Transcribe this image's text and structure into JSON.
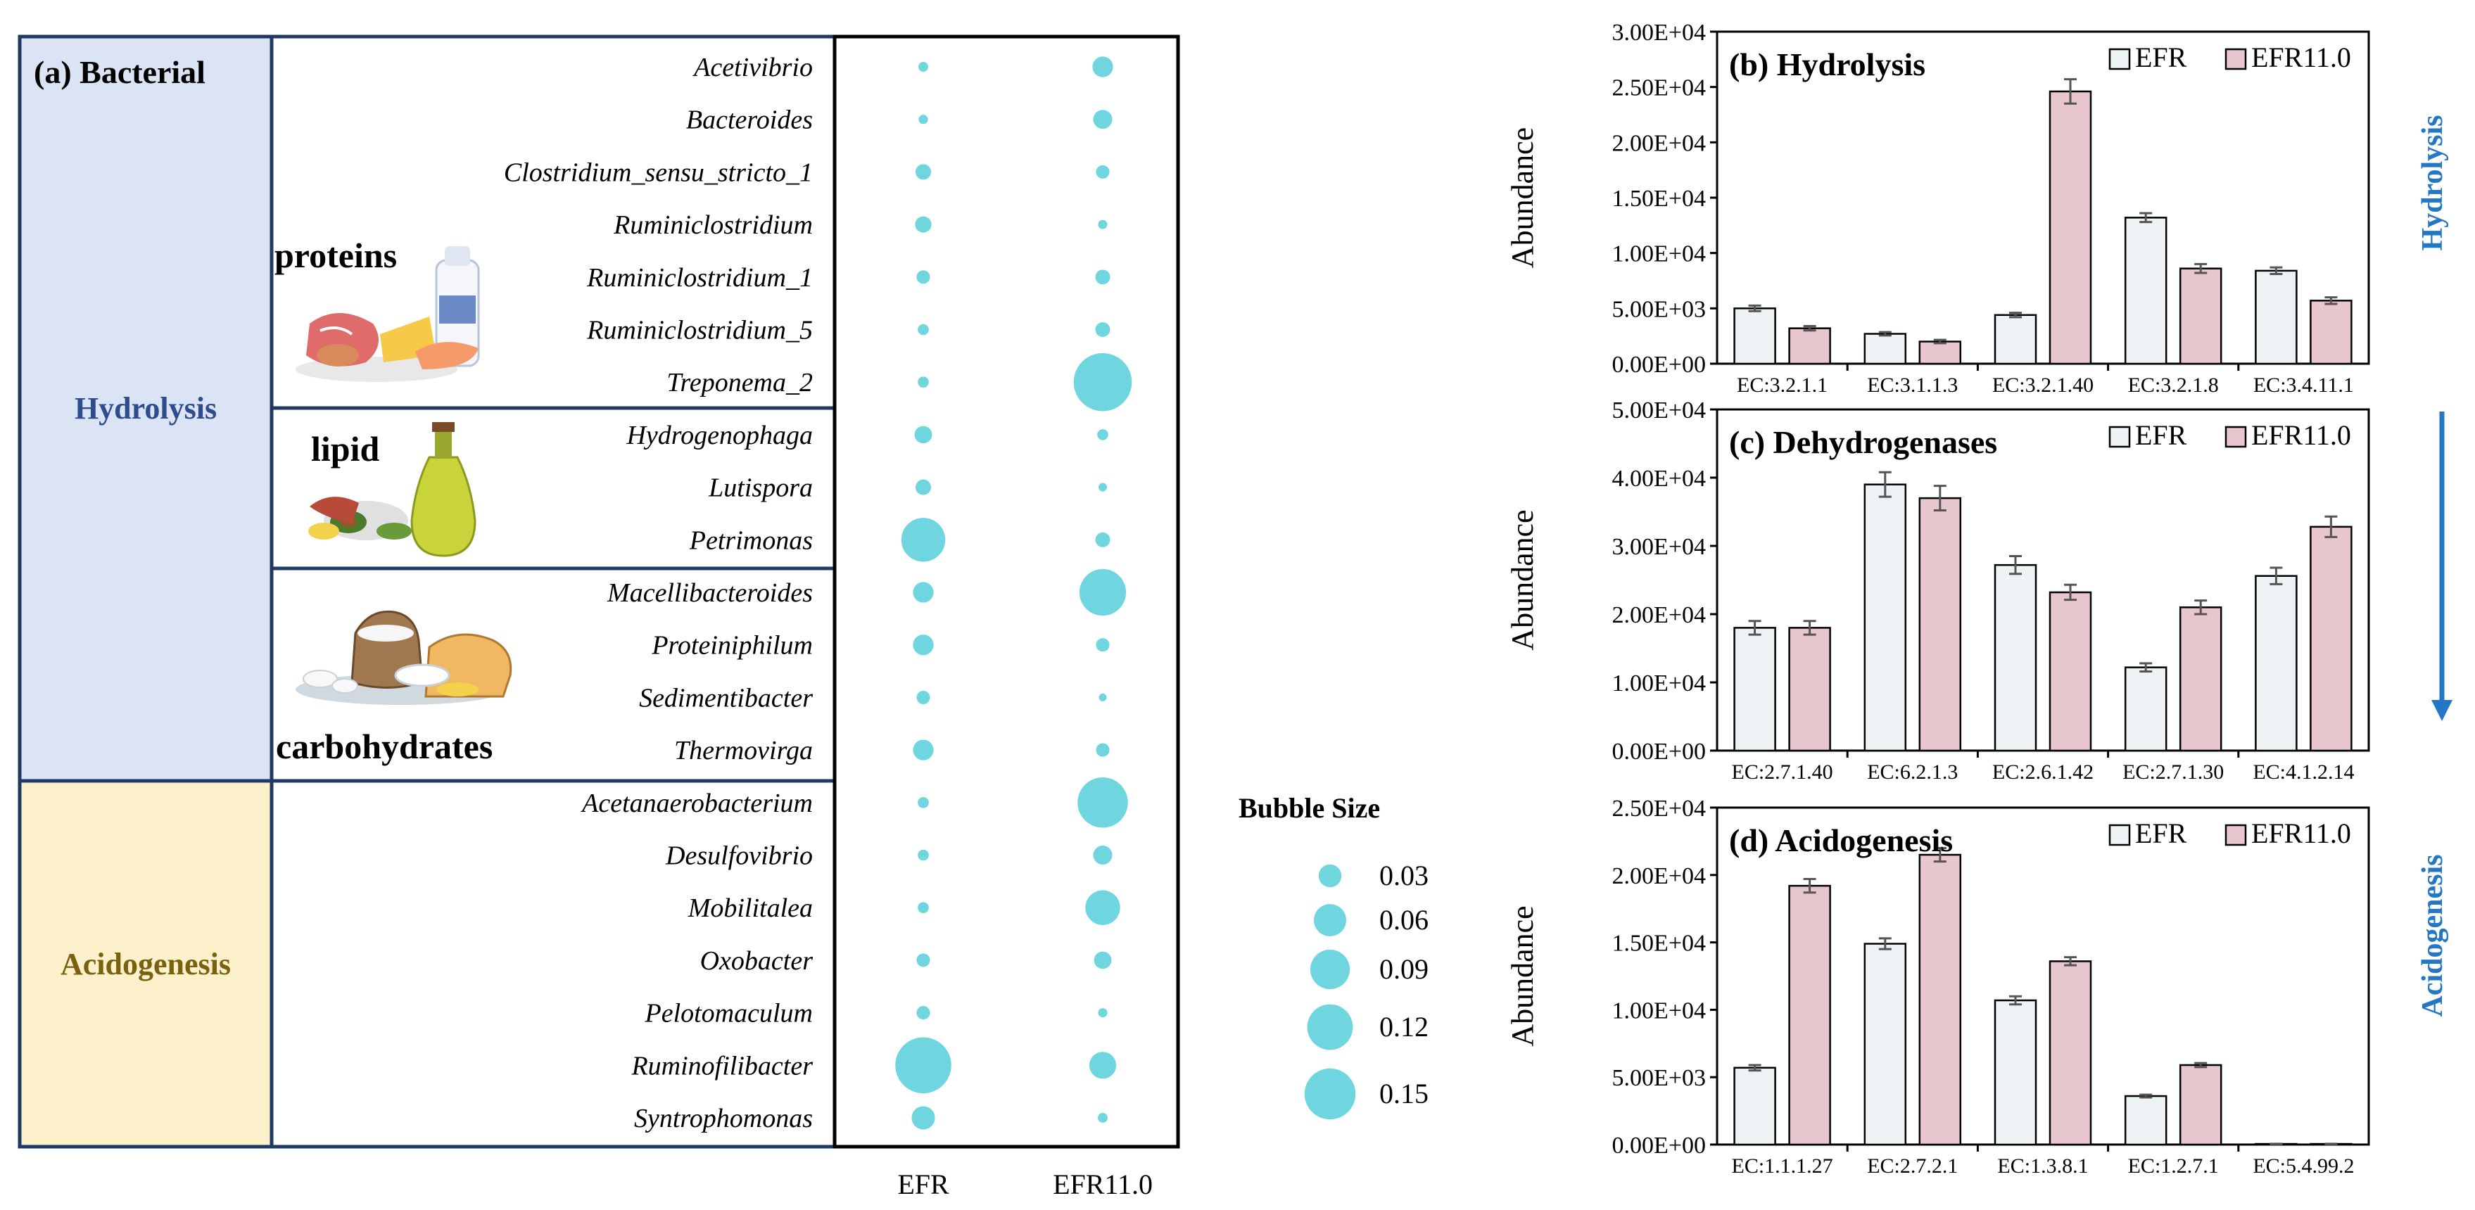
{
  "colors": {
    "bubble": "#6fd6df",
    "hydrolysis_bg": "#dbe4f4",
    "acidogenesis_bg": "#fdf1cc",
    "hydrolysis_text": "#2e4c8e",
    "acidogenesis_text": "#7a6110",
    "frame": "#1f3864",
    "efr_bar": "#edf3f5",
    "efr110_bar": "#e8c6cd",
    "arrow": "#2477c4"
  },
  "panel_a": {
    "title": "(a) Bacterial",
    "stage_hydrolysis": "Hydrolysis",
    "stage_acidogenesis": "Acidogenesis",
    "group_proteins": "proteins",
    "group_lipid": "lipid",
    "group_carbohydrates": "carbohydrates",
    "bubble_size_title": "Bubble Size",
    "legend_sizes": [
      "0.03",
      "0.06",
      "0.09",
      "0.12",
      "0.15"
    ],
    "legend_values": [
      0.03,
      0.06,
      0.09,
      0.12,
      0.15
    ],
    "icons": [
      "proteins-food-icon",
      "lipid-food-icon",
      "carbohydrates-food-icon"
    ]
  },
  "side_labels": {
    "hydrolysis": "Hydrolysis",
    "acidogenesis": "Acidogenesis"
  },
  "chart_data": [
    {
      "type": "scatter",
      "title": "(a) Bacterial",
      "categories": [
        "EFR",
        "EFR11.0"
      ],
      "genera": [
        "Acetivibrio",
        "Bacteroides",
        "Clostridium_sensu_stricto_1",
        "Ruminiclostridium",
        "Ruminiclostridium_1",
        "Ruminiclostridium_5",
        "Treponema_2",
        "Hydrogenophaga",
        "Lutispora",
        "Petrimonas",
        "Macellibacteroides",
        "Proteiniphilum",
        "Sedimentibacter",
        "Thermovirga",
        "Acetanaerobacterium",
        "Desulfovibrio",
        "Mobilitalea",
        "Oxobacter",
        "Pelotomaculum",
        "Ruminofilibacter",
        "Syntrophomonas"
      ],
      "series": [
        {
          "name": "EFR",
          "values": [
            0.008,
            0.007,
            0.02,
            0.022,
            0.015,
            0.01,
            0.01,
            0.025,
            0.02,
            0.16,
            0.035,
            0.035,
            0.015,
            0.035,
            0.01,
            0.01,
            0.01,
            0.015,
            0.015,
            0.26,
            0.045
          ]
        },
        {
          "name": "EFR11.0",
          "values": [
            0.035,
            0.03,
            0.015,
            0.007,
            0.018,
            0.018,
            0.28,
            0.01,
            0.006,
            0.018,
            0.18,
            0.015,
            0.005,
            0.015,
            0.21,
            0.03,
            0.1,
            0.025,
            0.007,
            0.06,
            0.008
          ]
        }
      ]
    },
    {
      "type": "bar",
      "title": "(b) Hydrolysis",
      "ylabel": "Abundance",
      "ylim": [
        0,
        30000
      ],
      "ytick_labels": [
        "0.00E+00",
        "5.00E+03",
        "1.00E+04",
        "1.50E+04",
        "2.00E+04",
        "2.50E+04",
        "3.00E+04"
      ],
      "categories": [
        "EC:3.2.1.1",
        "EC:3.1.1.3",
        "EC:3.2.1.40",
        "EC:3.2.1.8",
        "EC:3.4.11.1"
      ],
      "series": [
        {
          "name": "EFR",
          "values": [
            5000,
            2700,
            4400,
            13200,
            8400
          ],
          "errors": [
            250,
            150,
            200,
            400,
            300
          ]
        },
        {
          "name": "EFR11.0",
          "values": [
            3200,
            2000,
            24600,
            8600,
            5700
          ],
          "errors": [
            200,
            150,
            1100,
            400,
            300
          ]
        }
      ]
    },
    {
      "type": "bar",
      "title": "(c) Dehydrogenases",
      "ylabel": "Abundance",
      "ylim": [
        0,
        50000
      ],
      "ytick_labels": [
        "0.00E+00",
        "1.00E+04",
        "2.00E+04",
        "3.00E+04",
        "4.00E+04",
        "5.00E+04"
      ],
      "categories": [
        "EC:2.7.1.40",
        "EC:6.2.1.3",
        "EC:2.6.1.42",
        "EC:2.7.1.30",
        "EC:4.1.2.14"
      ],
      "series": [
        {
          "name": "EFR",
          "values": [
            18000,
            39000,
            27200,
            12200,
            25600
          ],
          "errors": [
            1000,
            1800,
            1300,
            600,
            1200
          ]
        },
        {
          "name": "EFR11.0",
          "values": [
            18000,
            37000,
            23200,
            21000,
            32800
          ],
          "errors": [
            1000,
            1800,
            1100,
            1000,
            1500
          ]
        }
      ]
    },
    {
      "type": "bar",
      "title": "(d) Acidogenesis",
      "ylabel": "Abundance",
      "ylim": [
        0,
        25000
      ],
      "ytick_labels": [
        "0.00E+00",
        "5.00E+03",
        "1.00E+04",
        "1.50E+04",
        "2.00E+04",
        "2.50E+04"
      ],
      "categories": [
        "EC:1.1.1.27",
        "EC:2.7.2.1",
        "EC:1.3.8.1",
        "EC:1.2.7.1",
        "EC:5.4.99.2"
      ],
      "series": [
        {
          "name": "EFR",
          "values": [
            5700,
            14900,
            10700,
            3600,
            50
          ],
          "errors": [
            200,
            400,
            300,
            100,
            10
          ]
        },
        {
          "name": "EFR11.0",
          "values": [
            19200,
            21500,
            13600,
            5900,
            50
          ],
          "errors": [
            500,
            500,
            300,
            150,
            10
          ]
        }
      ]
    }
  ]
}
